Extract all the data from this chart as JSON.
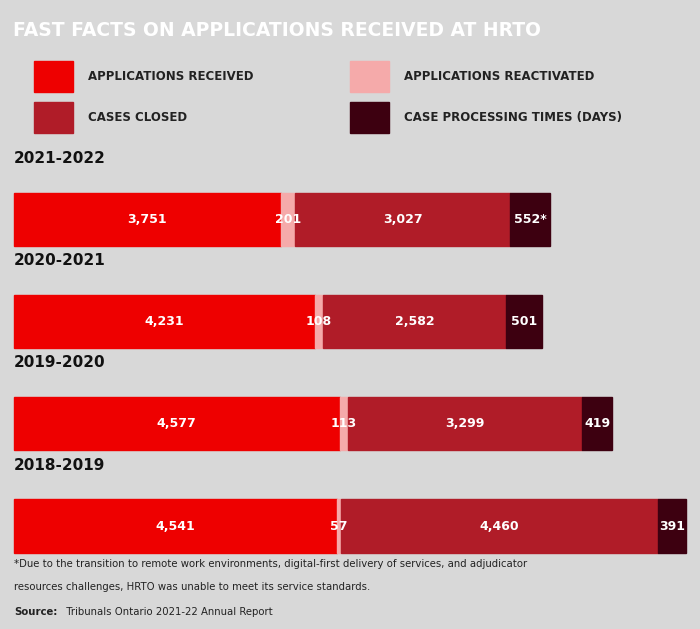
{
  "title": "FAST FACTS ON APPLICATIONS RECEIVED AT HRTO",
  "title_bg": "#1a1a1a",
  "title_color": "#ffffff",
  "bg_color": "#d8d8d8",
  "years": [
    "2021-2022",
    "2020-2021",
    "2019-2020",
    "2018-2019"
  ],
  "applications_received": [
    3751,
    4231,
    4577,
    4541
  ],
  "applications_reactivated": [
    201,
    108,
    113,
    57
  ],
  "cases_closed": [
    3027,
    2582,
    3299,
    4460
  ],
  "case_processing_times": [
    552,
    501,
    419,
    391
  ],
  "labels_received": [
    "3,751",
    "4,231",
    "4,577",
    "4,541"
  ],
  "labels_reactivated": [
    "201",
    "108",
    "113",
    "57"
  ],
  "labels_closed": [
    "3,027",
    "2,582",
    "3,299",
    "4,460"
  ],
  "labels_times": [
    "552*",
    "501",
    "419",
    "391"
  ],
  "color_received": "#ee0000",
  "color_reactivated": "#f5aaaa",
  "color_closed": "#b01c28",
  "color_times": "#3d0010",
  "legend_labels": [
    "APPLICATIONS RECEIVED",
    "APPLICATIONS REACTIVATED",
    "CASES CLOSED",
    "CASE PROCESSING TIMES (DAYS)"
  ],
  "footnote_line1": "*Due to the transition to remote work environments, digital-first delivery of services, and adjudicator",
  "footnote_line2": "resources challenges, HRTO was unable to meet its service standards.",
  "source_bold": "Source:",
  "source_rest": " Tribunals Ontario 2021-22 Annual Report"
}
